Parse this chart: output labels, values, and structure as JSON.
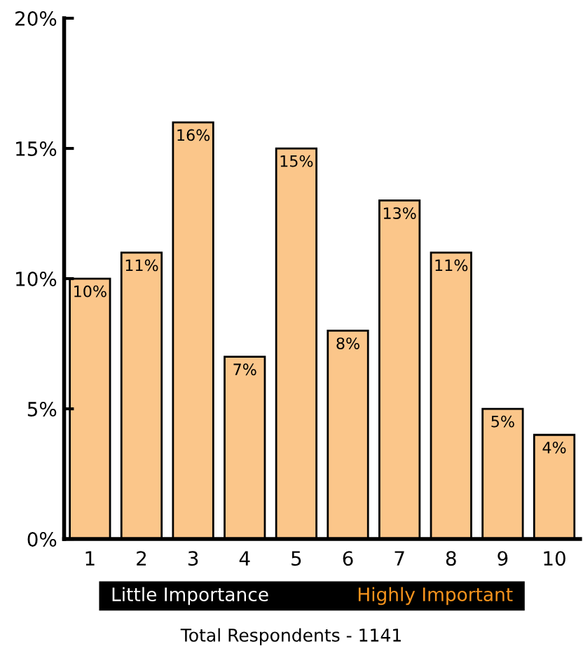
{
  "chart_data": {
    "type": "bar",
    "categories": [
      "1",
      "2",
      "3",
      "4",
      "5",
      "6",
      "7",
      "8",
      "9",
      "10"
    ],
    "values": [
      10,
      11,
      16,
      7,
      15,
      8,
      13,
      11,
      5,
      4
    ],
    "value_labels": [
      "10%",
      "11%",
      "16%",
      "7%",
      "15%",
      "8%",
      "13%",
      "11%",
      "5%",
      "4%"
    ],
    "color": "#fbc68a",
    "ylim": [
      0,
      20
    ],
    "yticks": [
      {
        "value": 0,
        "label": "0%"
      },
      {
        "value": 5,
        "label": "5%"
      },
      {
        "value": 10,
        "label": "10%"
      },
      {
        "value": 15,
        "label": "15%"
      },
      {
        "value": 20,
        "label": "20%"
      }
    ],
    "annotations": [
      "Little Importance",
      "Highly Important",
      "Total Respondents - 1141"
    ]
  }
}
